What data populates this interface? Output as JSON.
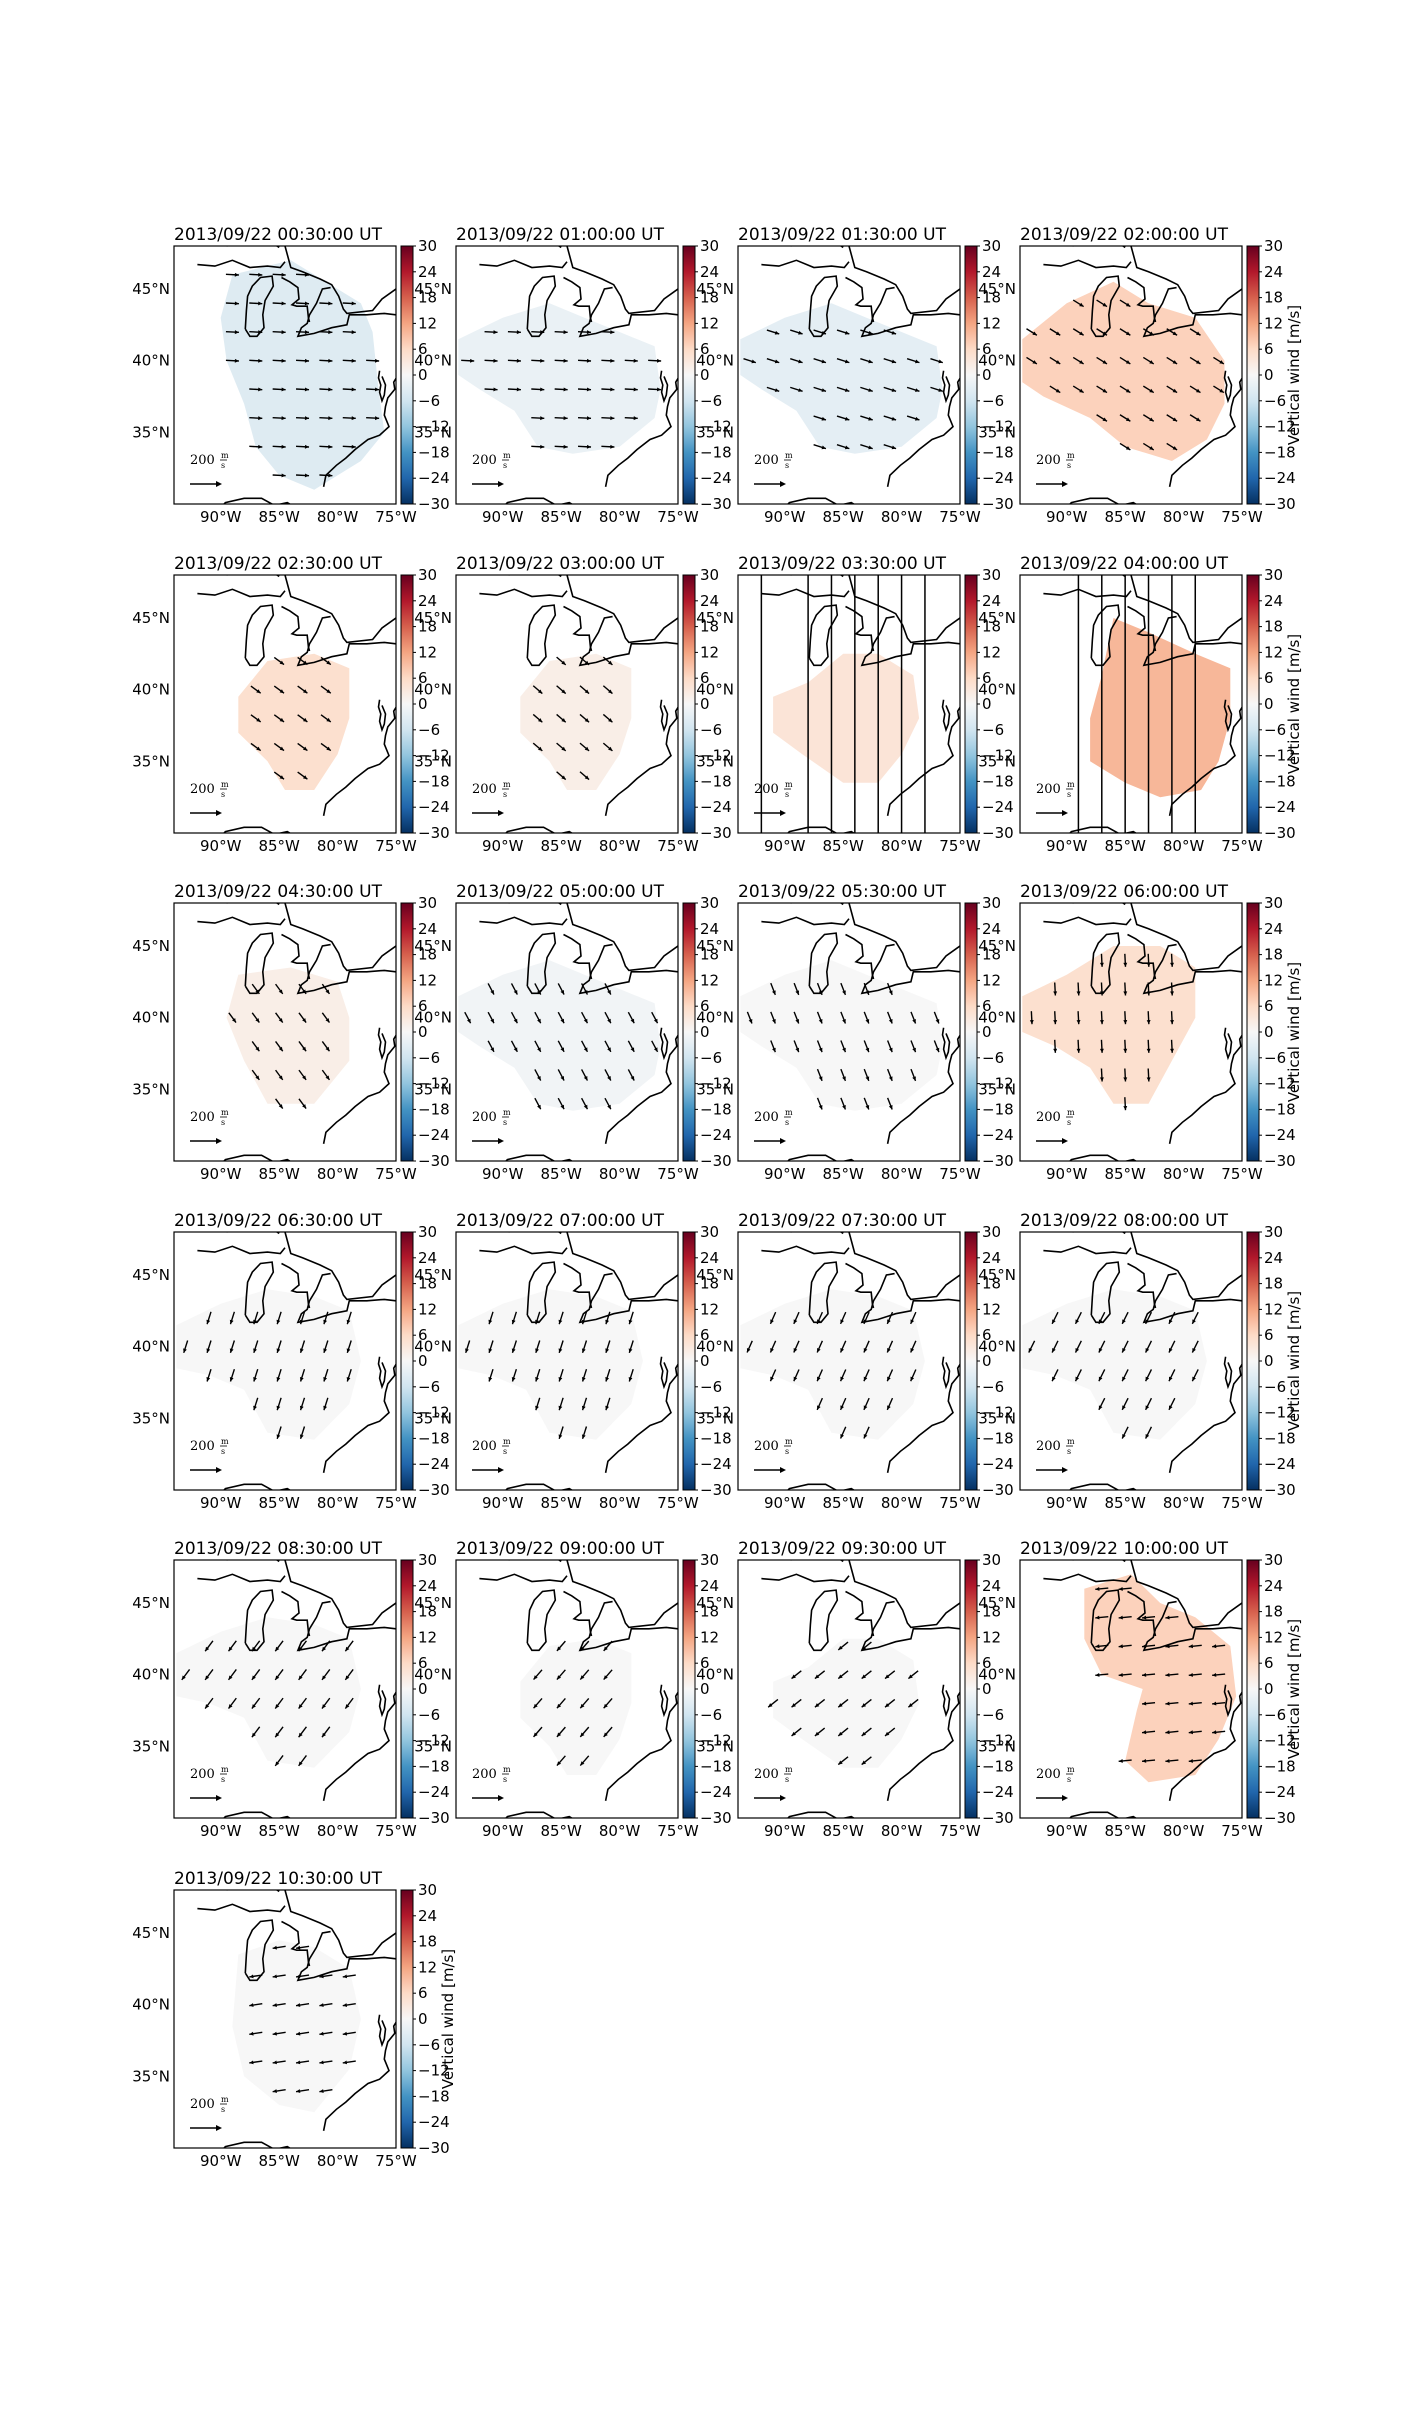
{
  "figure": {
    "colorbar_label": "Vertical wind [m/s]",
    "colorbar_ticks": [
      "30",
      "24",
      "18",
      "12",
      "6",
      "0",
      "−6",
      "−12",
      "−18",
      "−24",
      "−30"
    ],
    "lat_ticks": [
      "45°N",
      "40°N",
      "35°N"
    ],
    "lon_ticks": [
      "90°W",
      "85°W",
      "80°W",
      "75°W"
    ],
    "scale_label": "200",
    "scale_unit_num": "m",
    "scale_unit_den": "s"
  },
  "chart_data": {
    "type": "heatmap",
    "description_type": "map panels: vertical wind color field with horizontal wind vectors",
    "colorbar": {
      "label": "Vertical wind [m/s]",
      "range": [
        -30,
        30
      ],
      "colormap": "RdBu_r"
    },
    "xlim": [
      -94,
      -75
    ],
    "ylim": [
      30,
      48
    ],
    "reference_vector": {
      "value": 200,
      "unit": "m/s"
    },
    "panels": [
      {
        "title": "2013/09/22 00:30:00 UT",
        "vertical_wind": -4,
        "region": "A",
        "vec": [
          1.0,
          -0.05
        ],
        "nightlines": []
      },
      {
        "title": "2013/09/22 01:00:00 UT",
        "vertical_wind": -2,
        "region": "B",
        "vec": [
          1.0,
          -0.05
        ],
        "nightlines": []
      },
      {
        "title": "2013/09/22 01:30:00 UT",
        "vertical_wind": -3,
        "region": "B",
        "vec": [
          0.95,
          -0.3
        ],
        "nightlines": []
      },
      {
        "title": "2013/09/22 02:00:00 UT",
        "vertical_wind": 7,
        "region": "C",
        "vec": [
          0.8,
          -0.5
        ],
        "nightlines": []
      },
      {
        "title": "2013/09/22 02:30:00 UT",
        "vertical_wind": 5,
        "region": "D",
        "vec": [
          0.75,
          -0.55
        ],
        "nightlines": []
      },
      {
        "title": "2013/09/22 03:00:00 UT",
        "vertical_wind": 2,
        "region": "D",
        "vec": [
          0.7,
          -0.6
        ],
        "nightlines": []
      },
      {
        "title": "2013/09/22 03:30:00 UT",
        "vertical_wind": 4,
        "region": "E",
        "vec": [
          0,
          0
        ],
        "nightlines": [
          -92,
          -88,
          -86,
          -84,
          -82,
          -80,
          -78
        ]
      },
      {
        "title": "2013/09/22 04:00:00 UT",
        "vertical_wind": 10,
        "region": "F",
        "vec": [
          0,
          0
        ],
        "nightlines": [
          -89,
          -87,
          -85,
          -83,
          -81,
          -79
        ]
      },
      {
        "title": "2013/09/22 04:30:00 UT",
        "vertical_wind": 2,
        "region": "G",
        "vec": [
          0.55,
          -0.75
        ],
        "nightlines": []
      },
      {
        "title": "2013/09/22 05:00:00 UT",
        "vertical_wind": -1,
        "region": "B",
        "vec": [
          0.45,
          -0.85
        ],
        "nightlines": []
      },
      {
        "title": "2013/09/22 05:30:00 UT",
        "vertical_wind": 0,
        "region": "B",
        "vec": [
          0.35,
          -0.9
        ],
        "nightlines": []
      },
      {
        "title": "2013/09/22 06:00:00 UT",
        "vertical_wind": 5,
        "region": "H",
        "vec": [
          0.05,
          -1.0
        ],
        "nightlines": []
      },
      {
        "title": "2013/09/22 06:30:00 UT",
        "vertical_wind": 0,
        "region": "I",
        "vec": [
          -0.3,
          -0.95
        ],
        "nightlines": []
      },
      {
        "title": "2013/09/22 07:00:00 UT",
        "vertical_wind": 0,
        "region": "I",
        "vec": [
          -0.3,
          -0.95
        ],
        "nightlines": []
      },
      {
        "title": "2013/09/22 07:30:00 UT",
        "vertical_wind": 0,
        "region": "I",
        "vec": [
          -0.4,
          -0.9
        ],
        "nightlines": []
      },
      {
        "title": "2013/09/22 08:00:00 UT",
        "vertical_wind": 0,
        "region": "I",
        "vec": [
          -0.45,
          -0.9
        ],
        "nightlines": []
      },
      {
        "title": "2013/09/22 08:30:00 UT",
        "vertical_wind": 0,
        "region": "I",
        "vec": [
          -0.6,
          -0.8
        ],
        "nightlines": []
      },
      {
        "title": "2013/09/22 09:00:00 UT",
        "vertical_wind": 0,
        "region": "D",
        "vec": [
          -0.65,
          -0.75
        ],
        "nightlines": []
      },
      {
        "title": "2013/09/22 09:30:00 UT",
        "vertical_wind": 0,
        "region": "E",
        "vec": [
          -0.75,
          -0.6
        ],
        "nightlines": []
      },
      {
        "title": "2013/09/22 10:00:00 UT",
        "vertical_wind": 7,
        "region": "J",
        "vec": [
          -1.0,
          -0.1
        ],
        "nightlines": []
      },
      {
        "title": "2013/09/22 10:30:00 UT",
        "vertical_wind": 0,
        "region": "K",
        "vec": [
          -1.0,
          -0.15
        ],
        "nightlines": []
      }
    ]
  }
}
